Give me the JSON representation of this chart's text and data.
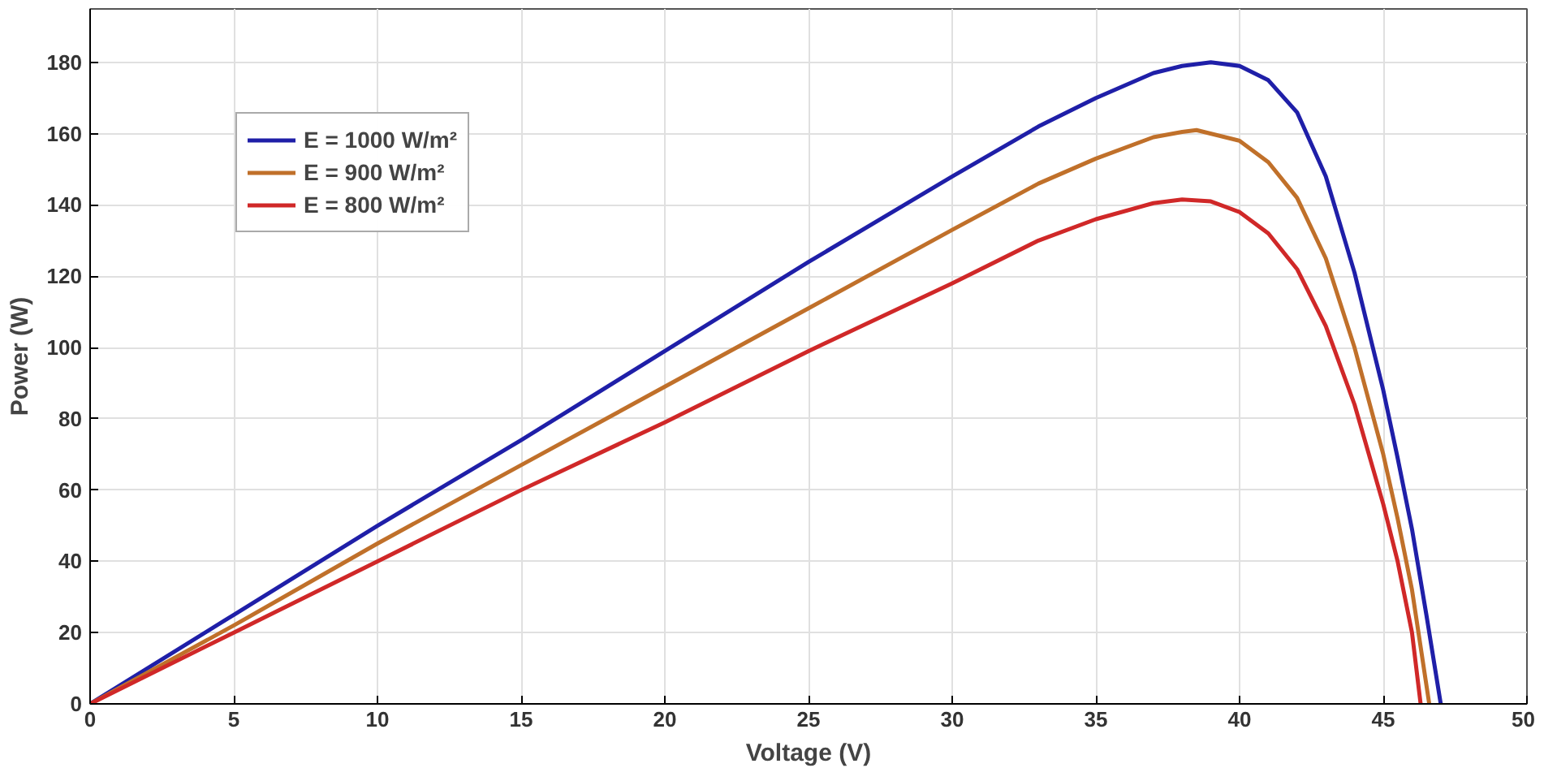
{
  "chart_data": {
    "type": "line",
    "xlabel": "Voltage (V)",
    "ylabel": "Power (W)",
    "xlim": [
      0,
      50
    ],
    "ylim": [
      0,
      195
    ],
    "xticks": [
      0,
      5,
      10,
      15,
      20,
      25,
      30,
      35,
      40,
      45,
      50
    ],
    "yticks": [
      0,
      20,
      40,
      60,
      80,
      100,
      120,
      140,
      160,
      180
    ],
    "grid": true,
    "legend": "top left",
    "line_style": "solid",
    "marker": "none",
    "series": [
      {
        "name": "E = 1000 W/m²",
        "color": "#1f1fa8",
        "x": [
          0,
          5,
          10,
          15,
          20,
          25,
          30,
          33,
          35,
          37,
          38,
          39,
          40,
          41,
          42,
          43,
          44,
          45,
          45.5,
          46,
          46.5,
          47
        ],
        "values": [
          0,
          25,
          50,
          74,
          99,
          124,
          148,
          162,
          170,
          177,
          179,
          180,
          179,
          175,
          166,
          148,
          121,
          88,
          69,
          49,
          25,
          0
        ]
      },
      {
        "name": "E = 900 W/m²",
        "color": "#c0702a",
        "x": [
          0,
          5,
          10,
          15,
          20,
          25,
          30,
          33,
          35,
          37,
          38,
          38.5,
          40,
          41,
          42,
          43,
          44,
          45,
          45.5,
          46,
          46.6
        ],
        "values": [
          0,
          22,
          45,
          67,
          89,
          111,
          133,
          146,
          153,
          159,
          160.5,
          161,
          158,
          152,
          142,
          125,
          100,
          70,
          52,
          32,
          0
        ]
      },
      {
        "name": "E = 800 W/m²",
        "color": "#d02828",
        "x": [
          0,
          5,
          10,
          15,
          20,
          25,
          30,
          33,
          35,
          37,
          38,
          39,
          40,
          41,
          42,
          43,
          44,
          45,
          45.5,
          46,
          46.3
        ],
        "values": [
          0,
          20,
          40,
          60,
          79,
          99,
          118,
          130,
          136,
          140.5,
          141.5,
          141,
          138,
          132,
          122,
          106,
          84,
          56,
          40,
          20,
          0
        ]
      }
    ]
  }
}
